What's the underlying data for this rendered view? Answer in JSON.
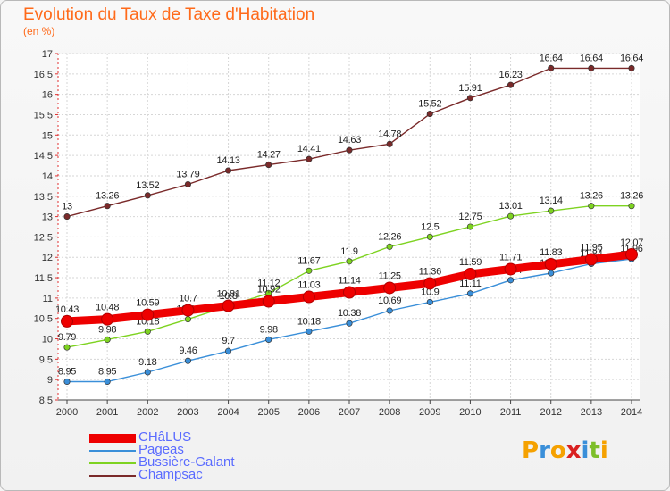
{
  "title": "Evolution du Taux de Taxe d'Habitation",
  "subtitle": "(en %)",
  "logo": {
    "text": "Proxiti",
    "letters": [
      "P",
      "r",
      "o",
      "x",
      "i",
      "t",
      "i"
    ],
    "colors": [
      "#f5a100",
      "#3a8fd9",
      "#f5a100",
      "#d92020",
      "#3a8fd9",
      "#7dbf2a",
      "#f5a100"
    ]
  },
  "chart_data": {
    "type": "line",
    "title": "Evolution du Taux de Taxe d'Habitation",
    "subtitle": "(en %)",
    "x": [
      2000,
      2001,
      2002,
      2003,
      2004,
      2005,
      2006,
      2007,
      2008,
      2009,
      2010,
      2011,
      2012,
      2013,
      2014
    ],
    "ylim": [
      8.5,
      17
    ],
    "yticks": [
      "8.5",
      "9",
      "9.5",
      "10",
      "10.5",
      "11",
      "11.5",
      "12",
      "12.5",
      "13",
      "13.5",
      "14",
      "14.5",
      "15",
      "15.5",
      "16",
      "16.5",
      "17"
    ],
    "legend_position": "bottom-left",
    "series": [
      {
        "name": "CHâLUS",
        "color": "#ee0000",
        "thick": true,
        "values": [
          10.43,
          10.48,
          10.59,
          10.7,
          10.81,
          10.92,
          11.03,
          11.14,
          11.25,
          11.36,
          11.59,
          11.71,
          11.83,
          11.95,
          12.07
        ],
        "labels": [
          "10.43",
          "10.48",
          "10.59",
          "10.7",
          "10.81",
          "10.92",
          "11.03",
          "11.14",
          "11.25",
          "11.36",
          "11.59",
          "11.71",
          "11.83",
          "11.95",
          "12.07"
        ]
      },
      {
        "name": "Pageas",
        "color": "#3a8fd9",
        "thick": false,
        "values": [
          8.95,
          8.95,
          9.18,
          9.46,
          9.7,
          9.98,
          10.18,
          10.38,
          10.69,
          10.9,
          11.11,
          11.44,
          11.61,
          11.84,
          11.96
        ],
        "labels": [
          "8.95",
          "8.95",
          "9.18",
          "9.46",
          "9.7",
          "9.98",
          "10.18",
          "10.38",
          "10.69",
          "10.9",
          "11.11",
          "11.44",
          "11.61",
          "11.84",
          "11.96"
        ]
      },
      {
        "name": "Bussière-Galant",
        "color": "#7ed321",
        "thick": false,
        "values": [
          9.79,
          9.98,
          10.18,
          10.48,
          10.8,
          11.12,
          11.67,
          11.9,
          12.26,
          12.5,
          12.75,
          13.01,
          13.14,
          13.26,
          13.26
        ],
        "labels": [
          "9.79",
          "9.98",
          "10.18",
          "10.48",
          "10.8",
          "11.12",
          "11.67",
          "11.9",
          "12.26",
          "12.5",
          "12.75",
          "13.01",
          "13.14",
          "13.26",
          "13.26"
        ]
      },
      {
        "name": "Champsac",
        "color": "#7a2a2a",
        "thick": false,
        "values": [
          13,
          13.26,
          13.52,
          13.79,
          14.13,
          14.27,
          14.41,
          14.63,
          14.78,
          15.52,
          15.91,
          16.23,
          16.64,
          16.64,
          16.64
        ],
        "labels": [
          "13",
          "13.26",
          "13.52",
          "13.79",
          "14.13",
          "14.27",
          "14.41",
          "14.63",
          "14.78",
          "15.52",
          "15.91",
          "16.23",
          "16.64",
          "16.64",
          "16.64"
        ]
      }
    ]
  }
}
